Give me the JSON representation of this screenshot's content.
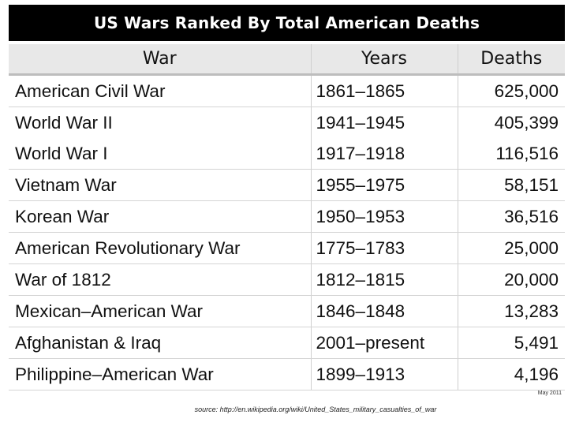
{
  "title": "US Wars Ranked By Total American Deaths",
  "headers": {
    "war": "War",
    "years": "Years",
    "deaths": "Deaths"
  },
  "rows": [
    {
      "war": "American Civil War",
      "years": "1861–1865",
      "deaths": "625,000"
    },
    {
      "war": "World War II",
      "years": "1941–1945",
      "deaths": "405,399"
    },
    {
      "war": "World War I",
      "years": "1917–1918",
      "deaths": "116,516"
    },
    {
      "war": "Vietnam War",
      "years": "1955–1975",
      "deaths": "58,151"
    },
    {
      "war": "Korean War",
      "years": "1950–1953",
      "deaths": "36,516"
    },
    {
      "war": "American Revolutionary War",
      "years": "1775–1783",
      "deaths": "25,000"
    },
    {
      "war": "War of 1812",
      "years": "1812–1815",
      "deaths": "20,000"
    },
    {
      "war": "Mexican–American War",
      "years": "1846–1848",
      "deaths": "13,283"
    },
    {
      "war": "Afghanistan & Iraq",
      "years": "2001–present",
      "deaths": "5,491"
    },
    {
      "war": "Philippine–American War",
      "years": "1899–1913",
      "deaths": "4,196"
    }
  ],
  "date": "May 2011",
  "source": "source: http://en.wikipedia.org/wiki/United_States_military_casualties_of_war"
}
